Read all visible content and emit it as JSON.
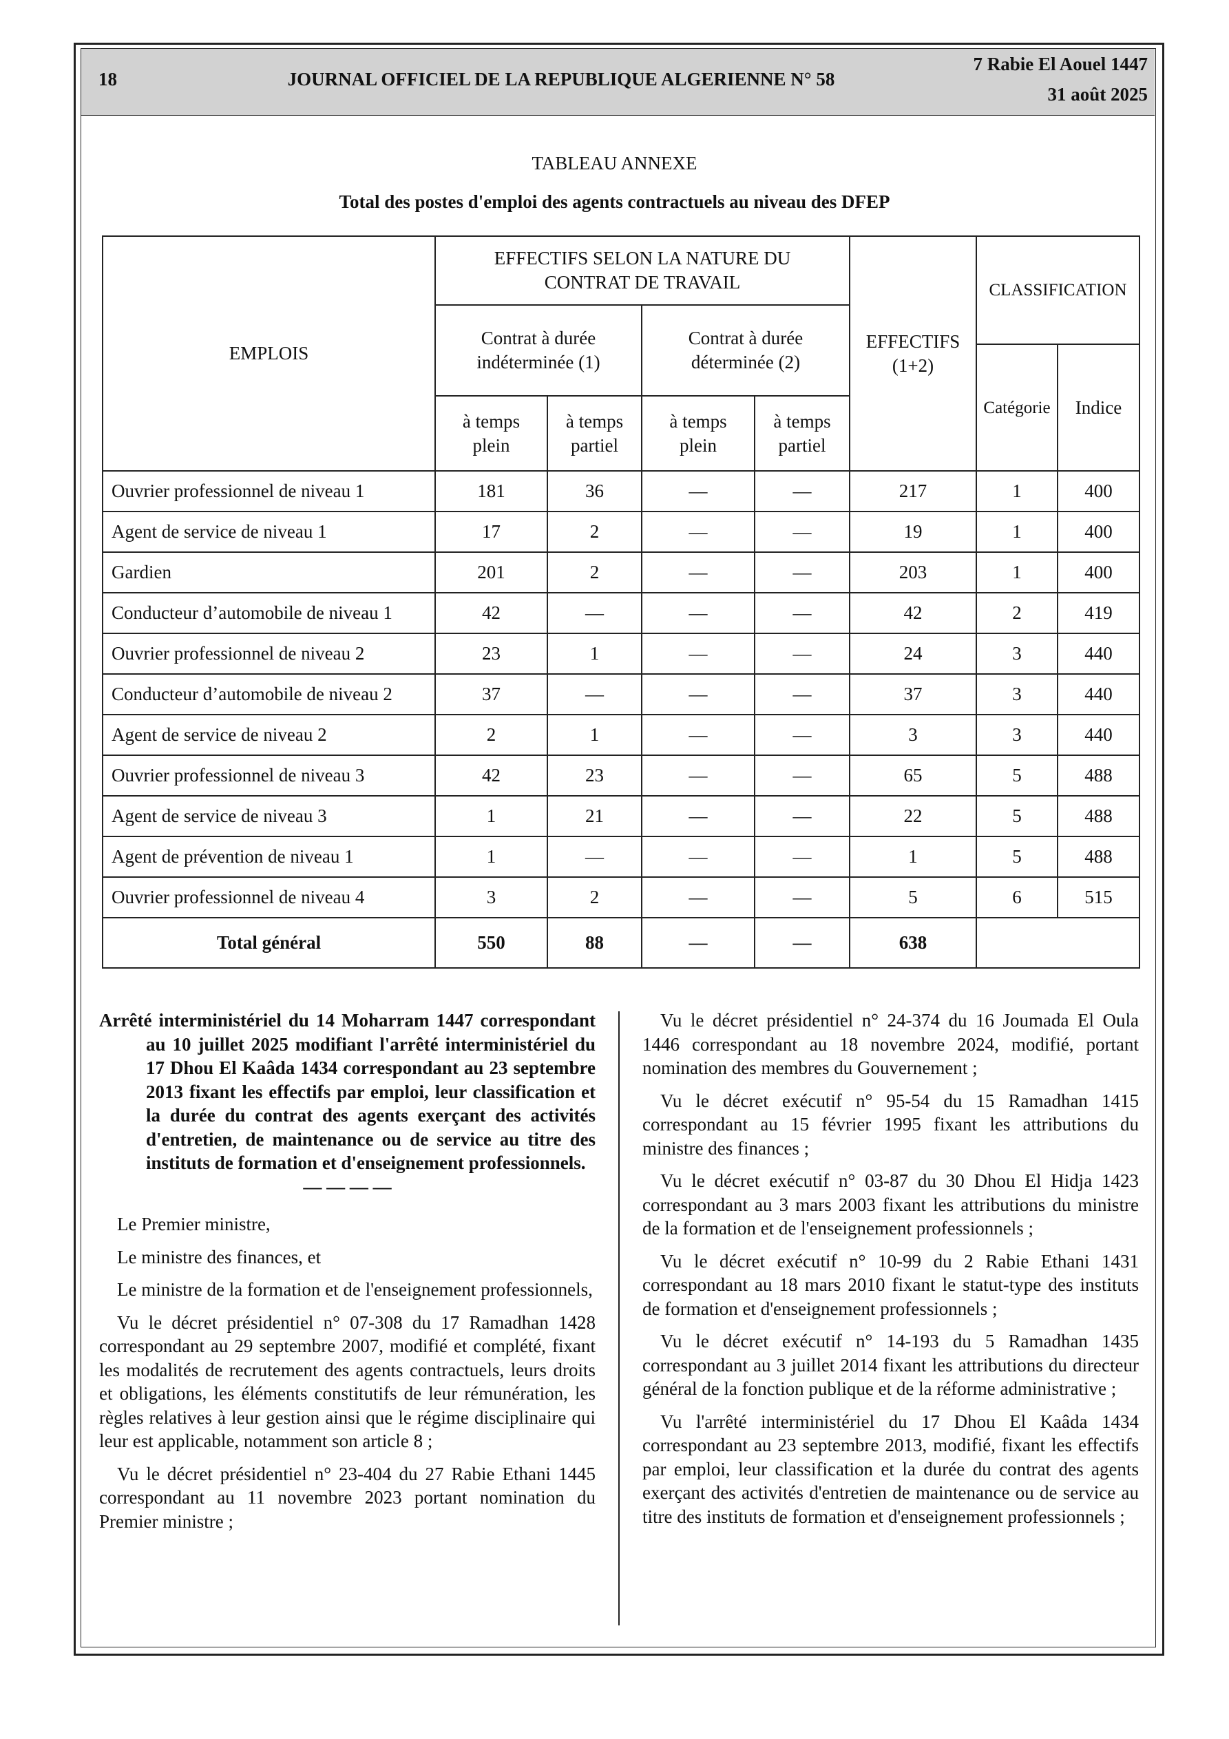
{
  "header": {
    "page_number": "18",
    "journal": "JOURNAL OFFICIEL DE LA REPUBLIQUE ALGERIENNE N° 58",
    "date_hijri": "7 Rabie El Aouel 1447",
    "date_gregorian": "31 août 2025"
  },
  "annex": {
    "title": "TABLEAU ANNEXE",
    "subtitle": "Total des postes d'emploi des agents contractuels au niveau des DFEP"
  },
  "table": {
    "header": {
      "emplois": "EMPLOIS",
      "effectifs_nature": "EFFECTIFS SELON LA NATURE DU CONTRAT DE TRAVAIL",
      "cdi": "Contrat à durée indéterminée (1)",
      "cdd": "Contrat à durée déterminée (2)",
      "effectifs_total": "EFFECTIFS (1+2)",
      "classification": "CLASSIFICATION",
      "categorie": "Catégorie",
      "indice": "Indice",
      "cdi_plein": "à temps plein",
      "cdi_partiel": "à temps partiel",
      "cdd_plein": "à temps plein",
      "cdd_partiel": "à temps partiel"
    },
    "rows": [
      [
        "Ouvrier professionnel de niveau 1",
        181,
        36,
        "—",
        "—",
        217,
        1,
        400
      ],
      [
        "Agent de service de niveau 1",
        17,
        2,
        "—",
        "—",
        19,
        1,
        400
      ],
      [
        "Gardien",
        201,
        2,
        "—",
        "—",
        203,
        1,
        400
      ],
      [
        "Conducteur d’automobile de niveau 1",
        42,
        "—",
        "—",
        "—",
        42,
        2,
        419
      ],
      [
        "Ouvrier professionnel de niveau 2",
        23,
        1,
        "—",
        "—",
        24,
        3,
        440
      ],
      [
        "Conducteur d’automobile de niveau 2",
        37,
        "—",
        "—",
        "—",
        37,
        3,
        440
      ],
      [
        "Agent de service de niveau 2",
        2,
        1,
        "—",
        "—",
        3,
        3,
        440
      ],
      [
        "Ouvrier professionnel de niveau 3",
        42,
        23,
        "—",
        "—",
        65,
        5,
        488
      ],
      [
        "Agent de service de niveau 3",
        1,
        21,
        "—",
        "—",
        22,
        5,
        488
      ],
      [
        "Agent de prévention de niveau 1",
        1,
        "—",
        "—",
        "—",
        1,
        5,
        488
      ],
      [
        "Ouvrier professionnel de niveau 4",
        3,
        2,
        "—",
        "—",
        5,
        6,
        515
      ]
    ],
    "total": [
      "Total général",
      550,
      88,
      "—",
      "—",
      638
    ]
  },
  "left_column": {
    "heading": "Arrêté interministériel du 14 Moharram 1447 correspondant au 10 juillet 2025 modifiant l'arrêté interministériel du 17 Dhou El Kaâda 1434 correspondant au 23 septembre 2013 fixant les effectifs par emploi, leur classification et la durée du contrat des agents exerçant des activités d'entretien, de maintenance ou de service au titre des instituts de formation et d'enseignement professionnels.",
    "separator": "— — — —",
    "paragraphs": [
      "Le Premier ministre,",
      "Le ministre des finances, et",
      "Le ministre de la formation et de l'enseignement professionnels,",
      "Vu le décret présidentiel n° 07-308 du 17 Ramadhan 1428 correspondant au 29 septembre 2007, modifié et complété, fixant les modalités de recrutement des agents contractuels, leurs droits et obligations, les éléments constitutifs de leur rémunération, les règles relatives à leur gestion ainsi que le régime disciplinaire qui leur est applicable, notamment son article 8 ;",
      "Vu le décret présidentiel n° 23-404 du 27 Rabie Ethani 1445 correspondant au 11 novembre 2023 portant nomination du Premier ministre ;"
    ]
  },
  "right_column": {
    "paragraphs": [
      "Vu le décret présidentiel n° 24-374 du 16 Joumada El Oula 1446 correspondant au 18 novembre 2024, modifié, portant nomination des membres du Gouvernement ;",
      "Vu le décret exécutif n° 95-54 du 15 Ramadhan 1415 correspondant au 15 février 1995 fixant les attributions du ministre des finances ;",
      "Vu le décret exécutif n° 03-87 du 30 Dhou El Hidja 1423 correspondant au 3 mars 2003 fixant les attributions du ministre de la formation et de l'enseignement professionnels ;",
      "Vu le décret exécutif n° 10-99 du 2 Rabie Ethani 1431 correspondant au 18 mars 2010 fixant le statut-type des instituts de formation et d'enseignement professionnels ;",
      "Vu le décret exécutif n° 14-193 du 5 Ramadhan 1435 correspondant au 3 juillet 2014 fixant les attributions du directeur général de la fonction publique et de la réforme administrative ;",
      "Vu l'arrêté interministériel du 17 Dhou El Kaâda 1434 correspondant au 23 septembre 2013, modifié, fixant les effectifs par emploi, leur classification et la durée du contrat des agents exerçant des activités d'entretien de maintenance ou de service au titre des instituts de formation et d'enseignement professionnels ;"
    ]
  }
}
